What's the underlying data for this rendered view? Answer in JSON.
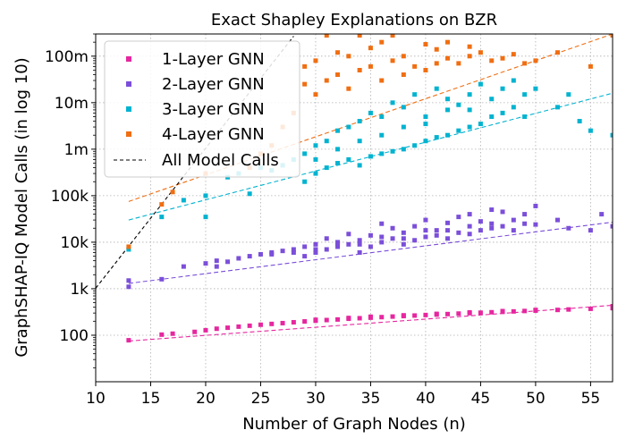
{
  "chart_data": {
    "type": "scatter",
    "title": "Exact Shapley Explanations on BZR",
    "xlabel": "Number of Graph Nodes (n)",
    "ylabel": "GraphSHAP-IQ Model Calls (in log 10)",
    "xlim": [
      10,
      57
    ],
    "ylim": [
      10,
      300000000
    ],
    "yscale": "log",
    "grid": true,
    "legend_position": "top-left",
    "xticks": [
      10,
      15,
      20,
      25,
      30,
      35,
      40,
      45,
      50,
      55
    ],
    "yticks": [
      {
        "value": 100,
        "label": "100"
      },
      {
        "value": 1000,
        "label": "1k"
      },
      {
        "value": 10000,
        "label": "10k"
      },
      {
        "value": 100000,
        "label": "100k"
      },
      {
        "value": 1000000,
        "label": "1m"
      },
      {
        "value": 10000000,
        "label": "10m"
      },
      {
        "value": 100000000,
        "label": "100m"
      }
    ],
    "series": [
      {
        "name": "1-Layer GNN",
        "color": "#e6279f",
        "marker": "square",
        "points": [
          [
            13,
            78
          ],
          [
            16,
            103
          ],
          [
            17,
            108
          ],
          [
            19,
            118
          ],
          [
            20,
            128
          ],
          [
            21,
            138
          ],
          [
            22,
            145
          ],
          [
            23,
            153
          ],
          [
            24,
            160
          ],
          [
            25,
            168
          ],
          [
            26,
            175
          ],
          [
            27,
            182
          ],
          [
            28,
            190
          ],
          [
            29,
            198
          ],
          [
            30,
            205
          ],
          [
            31,
            212
          ],
          [
            32,
            218
          ],
          [
            33,
            226
          ],
          [
            34,
            232
          ],
          [
            35,
            238
          ],
          [
            36,
            245
          ],
          [
            37,
            252
          ],
          [
            38,
            258
          ],
          [
            39,
            265
          ],
          [
            40,
            272
          ],
          [
            41,
            278
          ],
          [
            42,
            285
          ],
          [
            43,
            292
          ],
          [
            44,
            298
          ],
          [
            45,
            305
          ],
          [
            46,
            312
          ],
          [
            47,
            318
          ],
          [
            48,
            325
          ],
          [
            49,
            332
          ],
          [
            50,
            338
          ],
          [
            52,
            350
          ],
          [
            53,
            358
          ],
          [
            55,
            370
          ],
          [
            57,
            382
          ],
          [
            30,
            215
          ],
          [
            33,
            235
          ],
          [
            35,
            250
          ],
          [
            38,
            268
          ],
          [
            41,
            288
          ],
          [
            44,
            310
          ],
          [
            47,
            330
          ],
          [
            50,
            350
          ],
          [
            57,
            420
          ]
        ],
        "trend": [
          [
            13,
            75
          ],
          [
            57,
            440
          ]
        ]
      },
      {
        "name": "2-Layer GNN",
        "color": "#7b4fd9",
        "marker": "square",
        "points": [
          [
            13,
            1100
          ],
          [
            13,
            1500
          ],
          [
            16,
            1600
          ],
          [
            18,
            3000
          ],
          [
            20,
            3500
          ],
          [
            21,
            4000
          ],
          [
            22,
            3800
          ],
          [
            24,
            5000
          ],
          [
            25,
            5500
          ],
          [
            26,
            6000
          ],
          [
            27,
            6500
          ],
          [
            28,
            7000
          ],
          [
            29,
            5000
          ],
          [
            29,
            8000
          ],
          [
            30,
            6000
          ],
          [
            30,
            9000
          ],
          [
            31,
            7000
          ],
          [
            31,
            12000
          ],
          [
            32,
            8000
          ],
          [
            32,
            10000
          ],
          [
            33,
            9000
          ],
          [
            33,
            15000
          ],
          [
            34,
            6000
          ],
          [
            34,
            11000
          ],
          [
            35,
            8000
          ],
          [
            35,
            14000
          ],
          [
            36,
            10000
          ],
          [
            36,
            25000
          ],
          [
            37,
            12000
          ],
          [
            37,
            20000
          ],
          [
            38,
            9000
          ],
          [
            38,
            16000
          ],
          [
            39,
            11000
          ],
          [
            39,
            22000
          ],
          [
            40,
            13000
          ],
          [
            40,
            30000
          ],
          [
            41,
            14000
          ],
          [
            41,
            18000
          ],
          [
            42,
            12000
          ],
          [
            42,
            26000
          ],
          [
            43,
            16000
          ],
          [
            43,
            35000
          ],
          [
            44,
            15000
          ],
          [
            44,
            40000
          ],
          [
            45,
            18000
          ],
          [
            45,
            28000
          ],
          [
            46,
            20000
          ],
          [
            46,
            50000
          ],
          [
            47,
            22000
          ],
          [
            47,
            45000
          ],
          [
            48,
            18000
          ],
          [
            49,
            25000
          ],
          [
            49,
            40000
          ],
          [
            50,
            24000
          ],
          [
            50,
            60000
          ],
          [
            52,
            30000
          ],
          [
            53,
            20000
          ],
          [
            55,
            18000
          ],
          [
            56,
            40000
          ],
          [
            57,
            22000
          ],
          [
            21,
            3000
          ],
          [
            23,
            4500
          ],
          [
            26,
            5500
          ],
          [
            28,
            6000
          ],
          [
            30,
            7000
          ],
          [
            32,
            9000
          ],
          [
            34,
            9000
          ],
          [
            36,
            13000
          ],
          [
            38,
            12000
          ],
          [
            40,
            18000
          ],
          [
            42,
            18000
          ],
          [
            44,
            22000
          ],
          [
            46,
            25000
          ],
          [
            48,
            30000
          ]
        ],
        "trend": [
          [
            13,
            1300
          ],
          [
            57,
            27000
          ]
        ]
      },
      {
        "name": "3-Layer GNN",
        "color": "#00b3d0",
        "marker": "square",
        "points": [
          [
            13,
            7000
          ],
          [
            16,
            35000
          ],
          [
            18,
            80000
          ],
          [
            20,
            35000
          ],
          [
            20,
            100000
          ],
          [
            22,
            250000
          ],
          [
            23,
            300000
          ],
          [
            24,
            110000
          ],
          [
            25,
            400000
          ],
          [
            26,
            350000
          ],
          [
            27,
            450000
          ],
          [
            28,
            600000
          ],
          [
            29,
            200000
          ],
          [
            29,
            800000
          ],
          [
            30,
            300000
          ],
          [
            30,
            1200000
          ],
          [
            31,
            400000
          ],
          [
            31,
            1500000
          ],
          [
            32,
            500000
          ],
          [
            32,
            2500000
          ],
          [
            33,
            600000
          ],
          [
            33,
            3000000
          ],
          [
            34,
            450000
          ],
          [
            34,
            4000000
          ],
          [
            35,
            700000
          ],
          [
            35,
            6000000
          ],
          [
            36,
            800000
          ],
          [
            36,
            5000000
          ],
          [
            37,
            900000
          ],
          [
            37,
            10000000
          ],
          [
            38,
            1000000
          ],
          [
            38,
            8000000
          ],
          [
            39,
            1200000
          ],
          [
            39,
            15000000
          ],
          [
            40,
            1500000
          ],
          [
            40,
            3500000
          ],
          [
            41,
            1800000
          ],
          [
            41,
            20000000
          ],
          [
            42,
            2000000
          ],
          [
            42,
            12000000
          ],
          [
            43,
            2500000
          ],
          [
            43,
            9000000
          ],
          [
            44,
            3000000
          ],
          [
            44,
            15000000
          ],
          [
            45,
            3500000
          ],
          [
            45,
            25000000
          ],
          [
            46,
            5000000
          ],
          [
            46,
            12000000
          ],
          [
            47,
            6000000
          ],
          [
            47,
            20000000
          ],
          [
            48,
            8000000
          ],
          [
            48,
            30000000
          ],
          [
            49,
            5000000
          ],
          [
            49,
            15000000
          ],
          [
            50,
            20000000
          ],
          [
            52,
            8000000
          ],
          [
            53,
            15000000
          ],
          [
            54,
            4000000
          ],
          [
            55,
            2500000
          ],
          [
            57,
            2000000
          ],
          [
            30,
            600000
          ],
          [
            32,
            1000000
          ],
          [
            34,
            1500000
          ],
          [
            36,
            2000000
          ],
          [
            38,
            3000000
          ],
          [
            40,
            5000000
          ],
          [
            42,
            7000000
          ],
          [
            44,
            7000000
          ]
        ],
        "trend": [
          [
            13,
            30000
          ],
          [
            57,
            16000000
          ]
        ]
      },
      {
        "name": "4-Layer GNN",
        "color": "#f06e12",
        "marker": "square",
        "points": [
          [
            13,
            8000
          ],
          [
            16,
            65000
          ],
          [
            17,
            120000
          ],
          [
            20,
            300000
          ],
          [
            24,
            400000
          ],
          [
            25,
            800000
          ],
          [
            26,
            1200000
          ],
          [
            27,
            3000000
          ],
          [
            28,
            6000000
          ],
          [
            29,
            25000000
          ],
          [
            29,
            60000000
          ],
          [
            30,
            15000000
          ],
          [
            30,
            80000000
          ],
          [
            31,
            30000000
          ],
          [
            31,
            280000000
          ],
          [
            32,
            40000000
          ],
          [
            32,
            120000000
          ],
          [
            33,
            20000000
          ],
          [
            33,
            100000000
          ],
          [
            34,
            50000000
          ],
          [
            34,
            280000000
          ],
          [
            35,
            60000000
          ],
          [
            35,
            150000000
          ],
          [
            36,
            30000000
          ],
          [
            36,
            200000000
          ],
          [
            37,
            80000000
          ],
          [
            37,
            280000000
          ],
          [
            38,
            40000000
          ],
          [
            38,
            100000000
          ],
          [
            39,
            60000000
          ],
          [
            40,
            50000000
          ],
          [
            40,
            180000000
          ],
          [
            41,
            70000000
          ],
          [
            41,
            140000000
          ],
          [
            42,
            90000000
          ],
          [
            42,
            200000000
          ],
          [
            43,
            70000000
          ],
          [
            44,
            100000000
          ],
          [
            44,
            160000000
          ],
          [
            45,
            120000000
          ],
          [
            46,
            80000000
          ],
          [
            47,
            90000000
          ],
          [
            48,
            110000000
          ],
          [
            49,
            70000000
          ],
          [
            50,
            80000000
          ],
          [
            52,
            120000000
          ],
          [
            55,
            60000000
          ],
          [
            57,
            280000000
          ]
        ],
        "trend": [
          [
            13,
            75000
          ],
          [
            57,
            300000000
          ]
        ]
      }
    ],
    "reference_line": {
      "name": "All Model Calls",
      "color": "#000000",
      "style": "dashed",
      "points": [
        [
          10,
          1024
        ],
        [
          28,
          268435456
        ]
      ]
    }
  }
}
